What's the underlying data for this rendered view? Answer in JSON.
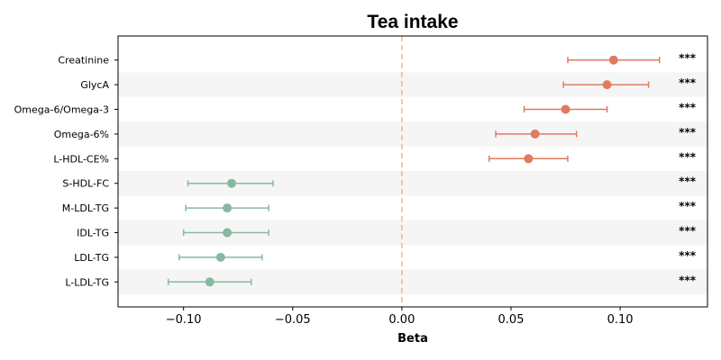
{
  "chart_data": {
    "type": "forest",
    "title": "Tea intake",
    "xlabel": "Beta",
    "ylabel": "",
    "xlim": [
      -0.13,
      0.14
    ],
    "xticks": [
      -0.1,
      -0.05,
      0.0,
      0.05,
      0.1
    ],
    "xtick_labels": [
      "−0.10",
      "−0.05",
      "0.00",
      "0.05",
      "0.10"
    ],
    "reference_line": 0,
    "grid": false,
    "legend": "none",
    "colors": {
      "positive": "#e07b60",
      "negative": "#87b9a0",
      "reference": "#f0c070",
      "band": "#f5f5f5"
    },
    "items": [
      {
        "label": "Creatinine",
        "beta": 0.097,
        "lower": 0.076,
        "upper": 0.118,
        "sig": "***"
      },
      {
        "label": "GlycA",
        "beta": 0.094,
        "lower": 0.074,
        "upper": 0.113,
        "sig": "***"
      },
      {
        "label": "Omega-6/Omega-3",
        "beta": 0.075,
        "lower": 0.056,
        "upper": 0.094,
        "sig": "***"
      },
      {
        "label": "Omega-6%",
        "beta": 0.061,
        "lower": 0.043,
        "upper": 0.08,
        "sig": "***"
      },
      {
        "label": "L-HDL-CE%",
        "beta": 0.058,
        "lower": 0.04,
        "upper": 0.076,
        "sig": "***"
      },
      {
        "label": "S-HDL-FC",
        "beta": -0.078,
        "lower": -0.098,
        "upper": -0.059,
        "sig": "***"
      },
      {
        "label": "M-LDL-TG",
        "beta": -0.08,
        "lower": -0.099,
        "upper": -0.061,
        "sig": "***"
      },
      {
        "label": "IDL-TG",
        "beta": -0.08,
        "lower": -0.1,
        "upper": -0.061,
        "sig": "***"
      },
      {
        "label": "LDL-TG",
        "beta": -0.083,
        "lower": -0.102,
        "upper": -0.064,
        "sig": "***"
      },
      {
        "label": "L-LDL-TG",
        "beta": -0.088,
        "lower": -0.107,
        "upper": -0.069,
        "sig": "***"
      }
    ]
  }
}
